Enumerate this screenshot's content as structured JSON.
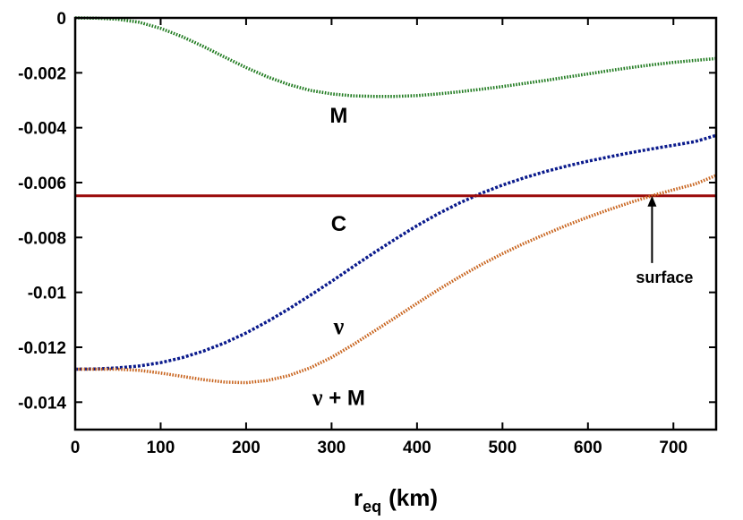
{
  "chart_data": {
    "type": "line",
    "xlabel": "r",
    "xlabel_sub": "eq",
    "xlabel_unit": "(km)",
    "xlim": [
      0,
      750
    ],
    "ylim": [
      -0.015,
      0
    ],
    "x_ticks": [
      0,
      100,
      200,
      300,
      400,
      500,
      600,
      700
    ],
    "x_tick_labels": [
      "0",
      "100",
      "200",
      "300",
      "400",
      "500",
      "600",
      "700"
    ],
    "y_ticks": [
      0,
      -0.002,
      -0.004,
      -0.006,
      -0.008,
      -0.01,
      -0.012,
      -0.014
    ],
    "y_tick_labels": [
      "0",
      "-0.002",
      "-0.004",
      "-0.006",
      "-0.008",
      "-0.01",
      "-0.012",
      "-0.014"
    ],
    "grid": false,
    "series": [
      {
        "name": "M",
        "color": "#1e7a1e",
        "style": "dotted",
        "x": [
          0,
          25,
          50,
          75,
          100,
          125,
          150,
          175,
          200,
          225,
          250,
          275,
          300,
          325,
          350,
          375,
          400,
          425,
          450,
          475,
          500,
          525,
          550,
          575,
          600,
          625,
          650,
          675,
          700,
          725,
          750
        ],
        "y": [
          0,
          -1e-05,
          -5e-05,
          -0.00016,
          -0.00038,
          -0.00068,
          -0.00104,
          -0.00143,
          -0.00181,
          -0.00215,
          -0.00243,
          -0.00264,
          -0.00277,
          -0.00284,
          -0.00286,
          -0.00286,
          -0.00283,
          -0.00277,
          -0.00269,
          -0.0026,
          -0.0025,
          -0.00239,
          -0.00228,
          -0.00216,
          -0.00204,
          -0.00192,
          -0.00181,
          -0.00171,
          -0.00162,
          -0.00155,
          -0.00148
        ]
      },
      {
        "name": "ν",
        "color": "#0a1a8c",
        "style": "dashed",
        "x": [
          0,
          25,
          50,
          75,
          100,
          125,
          150,
          175,
          200,
          225,
          250,
          275,
          300,
          325,
          350,
          375,
          400,
          425,
          450,
          475,
          500,
          525,
          550,
          575,
          600,
          625,
          650,
          675,
          700,
          725,
          750
        ],
        "y": [
          -0.0128,
          -0.01279,
          -0.01275,
          -0.01268,
          -0.01256,
          -0.01238,
          -0.01214,
          -0.01184,
          -0.01148,
          -0.01106,
          -0.0106,
          -0.01011,
          -0.0096,
          -0.00907,
          -0.00855,
          -0.00805,
          -0.00757,
          -0.00713,
          -0.00674,
          -0.00639,
          -0.00609,
          -0.00583,
          -0.0056,
          -0.0054,
          -0.00522,
          -0.00506,
          -0.00491,
          -0.00477,
          -0.00464,
          -0.00451,
          -0.00428
        ]
      },
      {
        "name": "C",
        "color": "#9a0a0a",
        "style": "solid",
        "x": [
          0,
          750
        ],
        "y": [
          -0.00648,
          -0.00648
        ]
      },
      {
        "name": "ν + M",
        "color": "#c8641e",
        "style": "dotted",
        "x": [
          0,
          25,
          50,
          75,
          100,
          125,
          150,
          175,
          200,
          225,
          250,
          275,
          300,
          325,
          350,
          375,
          400,
          425,
          450,
          475,
          500,
          525,
          550,
          575,
          600,
          625,
          650,
          675,
          700,
          725,
          750
        ],
        "y": [
          -0.0128,
          -0.0128,
          -0.0128,
          -0.01284,
          -0.01294,
          -0.01306,
          -0.01318,
          -0.01327,
          -0.01329,
          -0.01321,
          -0.01303,
          -0.01275,
          -0.01237,
          -0.01191,
          -0.01141,
          -0.01091,
          -0.0104,
          -0.0099,
          -0.00943,
          -0.00899,
          -0.00859,
          -0.00822,
          -0.00788,
          -0.00756,
          -0.00726,
          -0.00698,
          -0.00672,
          -0.00648,
          -0.00626,
          -0.00606,
          -0.00574
        ]
      }
    ],
    "annotations": [
      {
        "text": "M",
        "x": 300,
        "y": -0.00355
      },
      {
        "text": "C",
        "x": 300,
        "y": -0.0075
      },
      {
        "text": "ν",
        "x": 300,
        "y": -0.01125
      },
      {
        "text": "ν + M",
        "x": 300,
        "y": -0.01385
      },
      {
        "text": "surface",
        "x": 675,
        "y": -0.00965,
        "arrow_to": [
          675,
          -0.00648
        ]
      }
    ]
  }
}
